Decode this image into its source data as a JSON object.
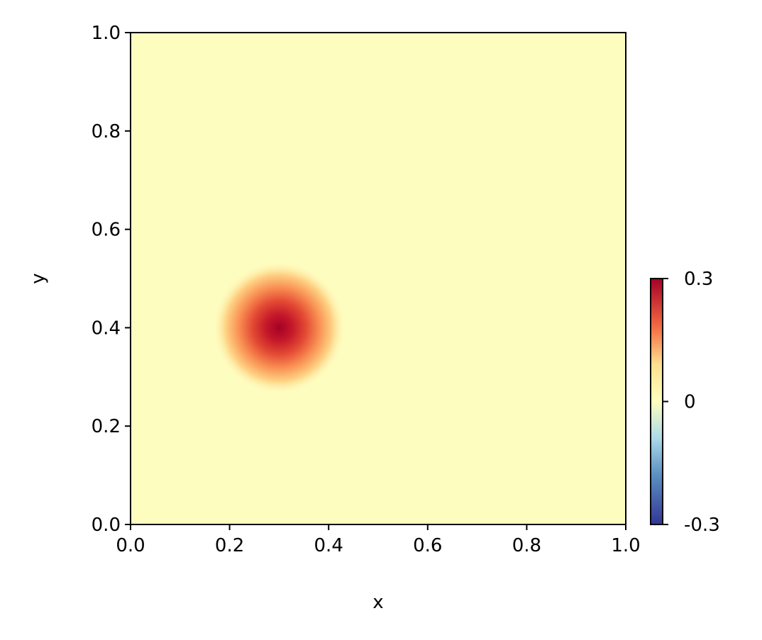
{
  "chart_data": {
    "type": "heatmap",
    "title": "",
    "xlabel": "x",
    "ylabel": "y",
    "xlim": [
      0.0,
      1.0
    ],
    "ylim": [
      0.0,
      1.0
    ],
    "xticks": [
      "0.0",
      "0.2",
      "0.4",
      "0.6",
      "0.8",
      "1.0"
    ],
    "yticks": [
      "0.0",
      "0.2",
      "0.4",
      "0.6",
      "0.8",
      "1.0"
    ],
    "colormap": "RdYlBu_r",
    "colorbar": {
      "range": [
        -0.3,
        0.3
      ],
      "ticks": [
        "-0.3",
        "0",
        "0.3"
      ],
      "placement": "right"
    },
    "background_value": 0.01,
    "peak": {
      "x": 0.3,
      "y": 0.4,
      "value": 0.3,
      "width": 0.045
    },
    "grid": false,
    "colors": {
      "red": "#a50026",
      "mid": "#ffffbf",
      "blue": "#313695"
    }
  }
}
